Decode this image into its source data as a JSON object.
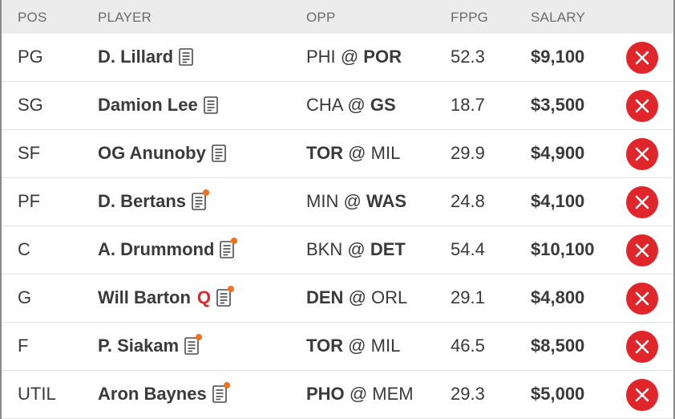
{
  "columns": {
    "pos": "POS",
    "player": "PLAYER",
    "opp": "OPP",
    "fppg": "FPPG",
    "salary": "SALARY"
  },
  "colors": {
    "remove": "#e0262a",
    "news_dot": "#f0701e",
    "status_q": "#e0262a",
    "header_bg": "#ececec"
  },
  "rows": [
    {
      "pos": "PG",
      "player": "D. Lillard",
      "status": "",
      "news": false,
      "away": "PHI",
      "home": "POR",
      "bold_side": "home",
      "fppg": "52.3",
      "salary": "$9,100"
    },
    {
      "pos": "SG",
      "player": "Damion Lee",
      "status": "",
      "news": false,
      "away": "CHA",
      "home": "GS",
      "bold_side": "home",
      "fppg": "18.7",
      "salary": "$3,500"
    },
    {
      "pos": "SF",
      "player": "OG Anunoby",
      "status": "",
      "news": false,
      "away": "TOR",
      "home": "MIL",
      "bold_side": "away",
      "fppg": "29.9",
      "salary": "$4,900"
    },
    {
      "pos": "PF",
      "player": "D. Bertans",
      "status": "",
      "news": true,
      "away": "MIN",
      "home": "WAS",
      "bold_side": "home",
      "fppg": "24.8",
      "salary": "$4,100"
    },
    {
      "pos": "C",
      "player": "A. Drummond",
      "status": "",
      "news": true,
      "away": "BKN",
      "home": "DET",
      "bold_side": "home",
      "fppg": "54.4",
      "salary": "$10,100"
    },
    {
      "pos": "G",
      "player": "Will Barton",
      "status": "Q",
      "news": true,
      "away": "DEN",
      "home": "ORL",
      "bold_side": "away",
      "fppg": "29.1",
      "salary": "$4,800"
    },
    {
      "pos": "F",
      "player": "P. Siakam",
      "status": "",
      "news": true,
      "away": "TOR",
      "home": "MIL",
      "bold_side": "away",
      "fppg": "46.5",
      "salary": "$8,500"
    },
    {
      "pos": "UTIL",
      "player": "Aron Baynes",
      "status": "",
      "news": true,
      "away": "PHO",
      "home": "MEM",
      "bold_side": "away",
      "fppg": "29.3",
      "salary": "$5,000"
    }
  ],
  "matchup_separator": "@"
}
